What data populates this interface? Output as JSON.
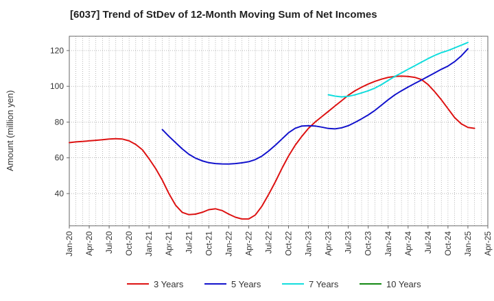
{
  "chart_data": {
    "type": "line",
    "title": "[6037]  Trend of StDev of 12-Month Moving Sum of Net Incomes",
    "xlabel": "",
    "ylabel": "Amount (million yen)",
    "ylim": [
      22,
      128
    ],
    "yticks": [
      40,
      60,
      80,
      100,
      120
    ],
    "xlim": [
      "2020-01",
      "2025-04"
    ],
    "xticks": [
      "Jan-20",
      "Apr-20",
      "Jul-20",
      "Oct-20",
      "Jan-21",
      "Apr-21",
      "Jul-21",
      "Oct-21",
      "Jan-22",
      "Apr-22",
      "Jul-22",
      "Oct-22",
      "Jan-23",
      "Apr-23",
      "Jul-23",
      "Oct-23",
      "Jan-24",
      "Apr-24",
      "Jul-24",
      "Oct-24",
      "Jan-25",
      "Apr-25"
    ],
    "grid": true,
    "legend_position": "bottom",
    "series": [
      {
        "name": "3 Years",
        "color": "#dd1111",
        "points": [
          [
            "2020-01",
            68.5
          ],
          [
            "2020-02",
            68.9
          ],
          [
            "2020-03",
            69.2
          ],
          [
            "2020-04",
            69.5
          ],
          [
            "2020-05",
            69.8
          ],
          [
            "2020-06",
            70.1
          ],
          [
            "2020-07",
            70.5
          ],
          [
            "2020-08",
            70.7
          ],
          [
            "2020-09",
            70.5
          ],
          [
            "2020-10",
            69.5
          ],
          [
            "2020-11",
            67.5
          ],
          [
            "2020-12",
            64.5
          ],
          [
            "2021-01",
            59.5
          ],
          [
            "2021-02",
            54.0
          ],
          [
            "2021-03",
            47.5
          ],
          [
            "2021-04",
            40.0
          ],
          [
            "2021-05",
            33.5
          ],
          [
            "2021-06",
            29.5
          ],
          [
            "2021-07",
            28.2
          ],
          [
            "2021-08",
            28.5
          ],
          [
            "2021-09",
            29.5
          ],
          [
            "2021-10",
            31.0
          ],
          [
            "2021-11",
            31.5
          ],
          [
            "2021-12",
            30.5
          ],
          [
            "2022-01",
            28.5
          ],
          [
            "2022-02",
            26.8
          ],
          [
            "2022-03",
            25.8
          ],
          [
            "2022-04",
            25.8
          ],
          [
            "2022-05",
            28.0
          ],
          [
            "2022-06",
            33.0
          ],
          [
            "2022-07",
            39.5
          ],
          [
            "2022-08",
            46.5
          ],
          [
            "2022-09",
            54.0
          ],
          [
            "2022-10",
            61.0
          ],
          [
            "2022-11",
            67.0
          ],
          [
            "2022-12",
            72.0
          ],
          [
            "2023-01",
            76.5
          ],
          [
            "2023-02",
            80.0
          ],
          [
            "2023-03",
            83.0
          ],
          [
            "2023-04",
            86.0
          ],
          [
            "2023-05",
            89.0
          ],
          [
            "2023-06",
            92.0
          ],
          [
            "2023-07",
            95.0
          ],
          [
            "2023-08",
            97.5
          ],
          [
            "2023-09",
            99.5
          ],
          [
            "2023-10",
            101.3
          ],
          [
            "2023-11",
            102.8
          ],
          [
            "2023-12",
            104.0
          ],
          [
            "2024-01",
            105.0
          ],
          [
            "2024-02",
            105.5
          ],
          [
            "2024-03",
            105.7
          ],
          [
            "2024-04",
            105.5
          ],
          [
            "2024-05",
            105.0
          ],
          [
            "2024-06",
            103.8
          ],
          [
            "2024-07",
            101.0
          ],
          [
            "2024-08",
            97.0
          ],
          [
            "2024-09",
            92.5
          ],
          [
            "2024-10",
            87.5
          ],
          [
            "2024-11",
            82.5
          ],
          [
            "2024-12",
            79.0
          ],
          [
            "2025-01",
            77.0
          ],
          [
            "2025-02",
            76.5
          ]
        ]
      },
      {
        "name": "5 Years",
        "color": "#1111cc",
        "points": [
          [
            "2021-03",
            75.8
          ],
          [
            "2021-04",
            72.0
          ],
          [
            "2021-05",
            68.5
          ],
          [
            "2021-06",
            65.0
          ],
          [
            "2021-07",
            62.0
          ],
          [
            "2021-08",
            59.8
          ],
          [
            "2021-09",
            58.3
          ],
          [
            "2021-10",
            57.3
          ],
          [
            "2021-11",
            56.8
          ],
          [
            "2021-12",
            56.6
          ],
          [
            "2022-01",
            56.5
          ],
          [
            "2022-02",
            56.8
          ],
          [
            "2022-03",
            57.2
          ],
          [
            "2022-04",
            57.8
          ],
          [
            "2022-05",
            59.0
          ],
          [
            "2022-06",
            61.0
          ],
          [
            "2022-07",
            63.8
          ],
          [
            "2022-08",
            67.0
          ],
          [
            "2022-09",
            70.5
          ],
          [
            "2022-10",
            74.0
          ],
          [
            "2022-11",
            76.5
          ],
          [
            "2022-12",
            77.8
          ],
          [
            "2023-01",
            78.0
          ],
          [
            "2023-02",
            77.8
          ],
          [
            "2023-03",
            77.2
          ],
          [
            "2023-04",
            76.4
          ],
          [
            "2023-05",
            76.2
          ],
          [
            "2023-06",
            76.8
          ],
          [
            "2023-07",
            78.0
          ],
          [
            "2023-08",
            79.8
          ],
          [
            "2023-09",
            81.8
          ],
          [
            "2023-10",
            84.0
          ],
          [
            "2023-11",
            86.5
          ],
          [
            "2023-12",
            89.5
          ],
          [
            "2024-01",
            92.5
          ],
          [
            "2024-02",
            95.2
          ],
          [
            "2024-03",
            97.5
          ],
          [
            "2024-04",
            99.6
          ],
          [
            "2024-05",
            101.6
          ],
          [
            "2024-06",
            103.5
          ],
          [
            "2024-07",
            105.5
          ],
          [
            "2024-08",
            107.5
          ],
          [
            "2024-09",
            109.5
          ],
          [
            "2024-10",
            111.3
          ],
          [
            "2024-11",
            113.8
          ],
          [
            "2024-12",
            117.0
          ],
          [
            "2025-01",
            121.0
          ]
        ]
      },
      {
        "name": "7 Years",
        "color": "#11dddd",
        "points": [
          [
            "2023-04",
            95.3
          ],
          [
            "2023-05",
            94.5
          ],
          [
            "2023-06",
            94.1
          ],
          [
            "2023-07",
            94.4
          ],
          [
            "2023-08",
            95.2
          ],
          [
            "2023-09",
            96.3
          ],
          [
            "2023-10",
            97.5
          ],
          [
            "2023-11",
            99.0
          ],
          [
            "2023-12",
            101.0
          ],
          [
            "2024-01",
            103.3
          ],
          [
            "2024-02",
            105.5
          ],
          [
            "2024-03",
            107.5
          ],
          [
            "2024-04",
            109.5
          ],
          [
            "2024-05",
            111.5
          ],
          [
            "2024-06",
            113.5
          ],
          [
            "2024-07",
            115.5
          ],
          [
            "2024-08",
            117.3
          ],
          [
            "2024-09",
            118.8
          ],
          [
            "2024-10",
            120.0
          ],
          [
            "2024-11",
            121.5
          ],
          [
            "2024-12",
            123.0
          ],
          [
            "2025-01",
            124.5
          ]
        ]
      },
      {
        "name": "10 Years",
        "color": "#118811",
        "points": []
      }
    ]
  }
}
